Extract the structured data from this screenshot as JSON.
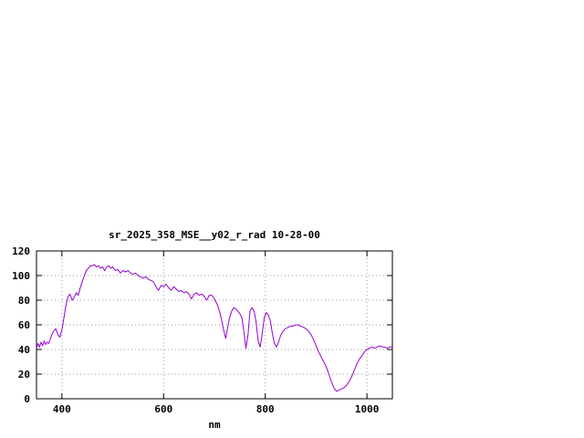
{
  "window": {
    "background_color": "#ffffff"
  },
  "chart_data": {
    "type": "line",
    "title": "sr_2025_358_MSE__y02_r_rad 10-28-00",
    "xlabel": "nm",
    "ylabel": "",
    "xlim": [
      350,
      1050
    ],
    "ylim": [
      0,
      120
    ],
    "xticks": [
      400,
      600,
      800,
      1000
    ],
    "yticks": [
      0,
      20,
      40,
      60,
      80,
      100,
      120
    ],
    "grid": true,
    "grid_style": "dotted",
    "legend_position": "none",
    "line_color": "#9400d3",
    "grid_color": "#999999",
    "axis_color": "#000000",
    "text_color": "#000000",
    "series": [
      {
        "name": "sr_2025_358_MSE__y02_r_rad",
        "color": "#9400d3",
        "x": [
          350,
          353,
          356,
          359,
          362,
          365,
          368,
          371,
          374,
          377,
          380,
          384,
          388,
          392,
          396,
          400,
          404,
          408,
          412,
          416,
          420,
          424,
          428,
          432,
          436,
          440,
          444,
          448,
          452,
          456,
          460,
          464,
          468,
          472,
          476,
          480,
          484,
          488,
          492,
          496,
          500,
          505,
          510,
          515,
          520,
          525,
          530,
          535,
          540,
          545,
          550,
          555,
          560,
          565,
          570,
          575,
          580,
          585,
          590,
          595,
          600,
          605,
          610,
          615,
          620,
          625,
          630,
          635,
          640,
          645,
          650,
          655,
          660,
          665,
          670,
          675,
          680,
          685,
          690,
          695,
          700,
          705,
          710,
          714,
          718,
          722,
          726,
          730,
          734,
          738,
          742,
          746,
          750,
          754,
          758,
          762,
          766,
          770,
          774,
          778,
          782,
          786,
          790,
          794,
          798,
          802,
          806,
          810,
          814,
          818,
          822,
          826,
          830,
          835,
          840,
          845,
          850,
          855,
          860,
          865,
          870,
          875,
          880,
          885,
          890,
          895,
          900,
          905,
          910,
          915,
          920,
          925,
          930,
          935,
          940,
          945,
          950,
          955,
          960,
          965,
          970,
          975,
          980,
          985,
          990,
          995,
          1000,
          1005,
          1010,
          1015,
          1020,
          1025,
          1030,
          1035,
          1040,
          1045,
          1050
        ],
        "y": [
          41,
          45,
          42,
          46,
          43,
          47,
          44,
          46,
          45,
          48,
          52,
          55,
          57,
          52,
          50,
          56,
          66,
          76,
          83,
          85,
          80,
          82,
          86,
          84,
          90,
          95,
          100,
          104,
          106,
          108,
          108,
          109,
          107,
          108,
          106,
          107,
          104,
          107,
          108,
          106,
          107,
          104,
          105,
          102,
          104,
          103,
          104,
          102,
          101,
          102,
          100,
          99,
          98,
          99,
          97,
          96,
          95,
          91,
          88,
          92,
          91,
          93,
          90,
          88,
          91,
          89,
          87,
          88,
          86,
          87,
          85,
          81,
          85,
          86,
          84,
          85,
          83,
          80,
          84,
          84,
          81,
          77,
          71,
          64,
          56,
          49,
          58,
          66,
          71,
          74,
          73,
          71,
          69,
          66,
          54,
          41,
          52,
          71,
          74,
          71,
          62,
          47,
          42,
          53,
          66,
          70,
          68,
          63,
          53,
          45,
          42,
          46,
          51,
          55,
          57,
          58,
          59,
          59,
          60,
          60,
          59,
          58,
          57,
          55,
          52,
          48,
          43,
          38,
          34,
          30,
          26,
          20,
          14,
          9,
          6,
          7,
          8,
          9,
          11,
          14,
          18,
          23,
          28,
          32,
          35,
          38,
          40,
          41,
          42,
          41,
          42,
          43,
          42,
          42,
          41,
          42,
          42
        ]
      }
    ]
  }
}
